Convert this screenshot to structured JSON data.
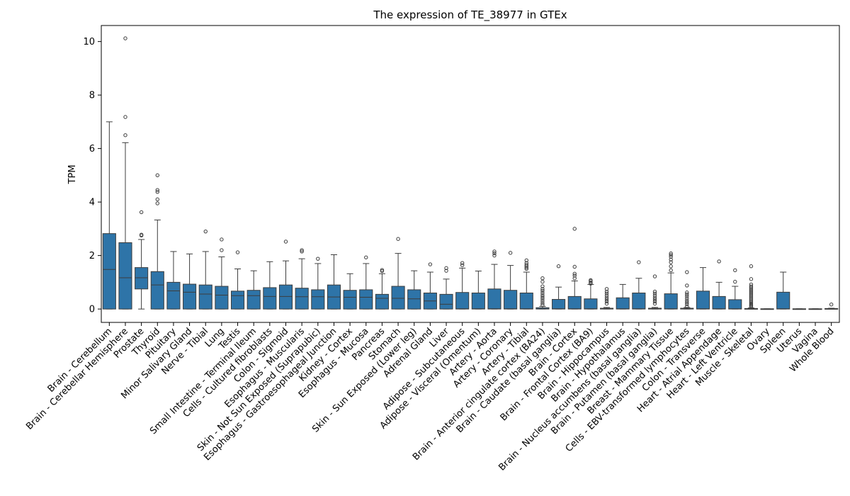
{
  "chart_data": {
    "type": "box",
    "title": "The expression of TE_38977 in GTEx",
    "xlabel": "",
    "ylabel": "TPM",
    "ylim": [
      -0.5,
      10.6
    ],
    "yticks": [
      0,
      2,
      4,
      6,
      8,
      10
    ],
    "grid": false,
    "legend": "none",
    "box_color": "#2e74a8",
    "line_color": "#3d3d3d",
    "categories": [
      "Brain - Cerebellum",
      "Brain - Cerebellar Hemisphere",
      "Prostate",
      "Thyroid",
      "Pituitary",
      "Minor Salivary Gland",
      "Nerve - Tibial",
      "Lung",
      "Testis",
      "Small Intestine - Terminal Ileum",
      "Cells - Cultured fibroblasts",
      "Colon - Sigmoid",
      "Esophagus - Muscularis",
      "Skin - Not Sun Exposed (Suprapubic)",
      "Esophagus - Gastroesophageal Junction",
      "Kidney - Cortex",
      "Esophagus - Mucosa",
      "Pancreas",
      "Stomach",
      "Skin - Sun Exposed (Lower leg)",
      "Adrenal Gland",
      "Liver",
      "Adipose - Subcutaneous",
      "Adipose - Visceral (Omentum)",
      "Artery - Aorta",
      "Artery - Coronary",
      "Artery - Tibial",
      "Brain - Anterior cingulate cortex (BA24)",
      "Brain - Caudate (basal ganglia)",
      "Brain - Cortex",
      "Brain - Frontal Cortex (BA9)",
      "Brain - Hippocampus",
      "Brain - Hypothalamus",
      "Brain - Nucleus accumbens (basal ganglia)",
      "Brain - Putamen (basal ganglia)",
      "Breast - Mammary Tissue",
      "Cells - EBV-transformed lymphocytes",
      "Colon - Transverse",
      "Heart - Atrial Appendage",
      "Heart - Left Ventricle",
      "Muscle - Skeletal",
      "Ovary",
      "Spleen",
      "Uterus",
      "Vagina",
      "Whole Blood"
    ],
    "boxes": [
      {
        "whislo": 0,
        "q1": 0,
        "med": 1.48,
        "q3": 2.82,
        "whishi": 7.0,
        "fliers": []
      },
      {
        "whislo": 0,
        "q1": 0,
        "med": 1.17,
        "q3": 2.48,
        "whishi": 6.22,
        "fliers": [
          6.5,
          7.18,
          10.12
        ]
      },
      {
        "whislo": 0,
        "q1": 0.75,
        "med": 1.17,
        "q3": 1.55,
        "whishi": 2.6,
        "fliers": [
          2.75,
          2.78,
          3.62
        ]
      },
      {
        "whislo": 0,
        "q1": 0,
        "med": 0.9,
        "q3": 1.4,
        "whishi": 3.33,
        "fliers": [
          3.95,
          4.1,
          4.38,
          4.45,
          5.0
        ]
      },
      {
        "whislo": 0,
        "q1": 0,
        "med": 0.68,
        "q3": 1.0,
        "whishi": 2.15,
        "fliers": []
      },
      {
        "whislo": 0,
        "q1": 0,
        "med": 0.63,
        "q3": 0.93,
        "whishi": 2.06,
        "fliers": []
      },
      {
        "whislo": 0,
        "q1": 0,
        "med": 0.56,
        "q3": 0.9,
        "whishi": 2.15,
        "fliers": [
          2.9
        ]
      },
      {
        "whislo": 0,
        "q1": 0,
        "med": 0.52,
        "q3": 0.85,
        "whishi": 1.95,
        "fliers": [
          2.2,
          2.6
        ]
      },
      {
        "whislo": 0,
        "q1": 0,
        "med": 0.5,
        "q3": 0.67,
        "whishi": 1.5,
        "fliers": [
          2.12
        ]
      },
      {
        "whislo": 0,
        "q1": 0,
        "med": 0.5,
        "q3": 0.7,
        "whishi": 1.43,
        "fliers": []
      },
      {
        "whislo": 0,
        "q1": 0,
        "med": 0.47,
        "q3": 0.8,
        "whishi": 1.77,
        "fliers": []
      },
      {
        "whislo": 0,
        "q1": 0,
        "med": 0.47,
        "q3": 0.9,
        "whishi": 1.8,
        "fliers": [
          2.52
        ]
      },
      {
        "whislo": 0,
        "q1": 0,
        "med": 0.46,
        "q3": 0.78,
        "whishi": 1.88,
        "fliers": [
          2.15,
          2.2
        ]
      },
      {
        "whislo": 0,
        "q1": 0,
        "med": 0.46,
        "q3": 0.72,
        "whishi": 1.7,
        "fliers": [
          1.88
        ]
      },
      {
        "whislo": 0,
        "q1": 0,
        "med": 0.45,
        "q3": 0.9,
        "whishi": 2.03,
        "fliers": []
      },
      {
        "whislo": 0,
        "q1": 0,
        "med": 0.44,
        "q3": 0.7,
        "whishi": 1.32,
        "fliers": []
      },
      {
        "whislo": 0,
        "q1": 0,
        "med": 0.44,
        "q3": 0.72,
        "whishi": 1.7,
        "fliers": [
          1.93
        ]
      },
      {
        "whislo": 0,
        "q1": 0,
        "med": 0.4,
        "q3": 0.55,
        "whishi": 1.32,
        "fliers": [
          1.42,
          1.46
        ]
      },
      {
        "whislo": 0,
        "q1": 0,
        "med": 0.4,
        "q3": 0.85,
        "whishi": 2.08,
        "fliers": [
          2.62
        ]
      },
      {
        "whislo": 0,
        "q1": 0,
        "med": 0.38,
        "q3": 0.72,
        "whishi": 1.43,
        "fliers": []
      },
      {
        "whislo": 0,
        "q1": 0,
        "med": 0.3,
        "q3": 0.6,
        "whishi": 1.38,
        "fliers": [
          1.67
        ]
      },
      {
        "whislo": 0,
        "q1": 0,
        "med": 0.18,
        "q3": 0.55,
        "whishi": 1.12,
        "fliers": [
          1.43,
          1.53
        ]
      },
      {
        "whislo": 0,
        "q1": 0,
        "med": 0.01,
        "q3": 0.62,
        "whishi": 1.53,
        "fliers": [
          1.64,
          1.72
        ]
      },
      {
        "whislo": 0,
        "q1": 0,
        "med": 0.01,
        "q3": 0.6,
        "whishi": 1.42,
        "fliers": []
      },
      {
        "whislo": 0,
        "q1": 0,
        "med": 0.01,
        "q3": 0.75,
        "whishi": 1.67,
        "fliers": [
          2.0,
          2.08,
          2.15
        ]
      },
      {
        "whislo": 0,
        "q1": 0,
        "med": 0.01,
        "q3": 0.7,
        "whishi": 1.63,
        "fliers": [
          2.1
        ]
      },
      {
        "whislo": 0,
        "q1": 0,
        "med": 0.01,
        "q3": 0.6,
        "whishi": 1.38,
        "fliers": [
          1.5,
          1.55,
          1.6,
          1.65,
          1.72,
          1.82
        ]
      },
      {
        "whislo": 0,
        "q1": 0,
        "med": 0.01,
        "q3": 0.05,
        "whishi": 0.1,
        "fliers": [
          0.15,
          0.22,
          0.3,
          0.38,
          0.45,
          0.52,
          0.6,
          0.68,
          0.75,
          0.85,
          1.02,
          1.15
        ]
      },
      {
        "whislo": 0,
        "q1": 0,
        "med": 0.01,
        "q3": 0.36,
        "whishi": 0.82,
        "fliers": [
          1.6
        ]
      },
      {
        "whislo": 0,
        "q1": 0,
        "med": 0.01,
        "q3": 0.47,
        "whishi": 1.05,
        "fliers": [
          1.15,
          1.25,
          1.32,
          1.58,
          3.0
        ]
      },
      {
        "whislo": 0,
        "q1": 0,
        "med": 0.01,
        "q3": 0.38,
        "whishi": 0.92,
        "fliers": [
          0.95,
          1.0,
          1.05,
          1.08
        ]
      },
      {
        "whislo": 0,
        "q1": 0,
        "med": 0.01,
        "q3": 0.03,
        "whishi": 0.06,
        "fliers": [
          0.2,
          0.28,
          0.35,
          0.42,
          0.5,
          0.58,
          0.65,
          0.75
        ]
      },
      {
        "whislo": 0,
        "q1": 0,
        "med": 0.01,
        "q3": 0.42,
        "whishi": 0.92,
        "fliers": []
      },
      {
        "whislo": 0,
        "q1": 0,
        "med": 0.01,
        "q3": 0.6,
        "whishi": 1.15,
        "fliers": [
          1.75
        ]
      },
      {
        "whislo": 0,
        "q1": 0,
        "med": 0.01,
        "q3": 0.03,
        "whishi": 0.06,
        "fliers": [
          0.2,
          0.28,
          0.35,
          0.42,
          0.5,
          0.58,
          0.65,
          1.22
        ]
      },
      {
        "whislo": 0,
        "q1": 0,
        "med": 0.01,
        "q3": 0.57,
        "whishi": 1.35,
        "fliers": [
          1.45,
          1.6,
          1.75,
          1.85,
          1.95,
          2.02,
          2.08
        ]
      },
      {
        "whislo": 0,
        "q1": 0,
        "med": 0.01,
        "q3": 0.03,
        "whishi": 0.06,
        "fliers": [
          0.1,
          0.18,
          0.25,
          0.32,
          0.4,
          0.48,
          0.55,
          0.62,
          0.88,
          1.38
        ]
      },
      {
        "whislo": 0,
        "q1": 0,
        "med": 0.01,
        "q3": 0.67,
        "whishi": 1.55,
        "fliers": []
      },
      {
        "whislo": 0,
        "q1": 0,
        "med": 0.01,
        "q3": 0.47,
        "whishi": 1.0,
        "fliers": [
          1.78
        ]
      },
      {
        "whislo": 0,
        "q1": 0,
        "med": 0.01,
        "q3": 0.35,
        "whishi": 0.85,
        "fliers": [
          1.02,
          1.45
        ]
      },
      {
        "whislo": 0,
        "q1": 0,
        "med": 0.005,
        "q3": 0.02,
        "whishi": 0.04,
        "fliers": [
          0.08,
          0.12,
          0.16,
          0.2,
          0.25,
          0.3,
          0.35,
          0.4,
          0.45,
          0.5,
          0.55,
          0.6,
          0.65,
          0.7,
          0.75,
          0.8,
          0.85,
          0.92,
          1.12,
          1.6
        ]
      },
      {
        "whislo": 0,
        "q1": 0,
        "med": 0,
        "q3": 0.01,
        "whishi": 0.01,
        "fliers": []
      },
      {
        "whislo": 0,
        "q1": 0,
        "med": 0.01,
        "q3": 0.63,
        "whishi": 1.38,
        "fliers": []
      },
      {
        "whislo": 0,
        "q1": 0,
        "med": 0,
        "q3": 0.01,
        "whishi": 0.01,
        "fliers": []
      },
      {
        "whislo": 0,
        "q1": 0,
        "med": 0,
        "q3": 0.01,
        "whishi": 0.01,
        "fliers": []
      },
      {
        "whislo": 0,
        "q1": 0,
        "med": 0,
        "q3": 0.02,
        "whishi": 0.03,
        "fliers": [
          0.17
        ]
      }
    ]
  }
}
